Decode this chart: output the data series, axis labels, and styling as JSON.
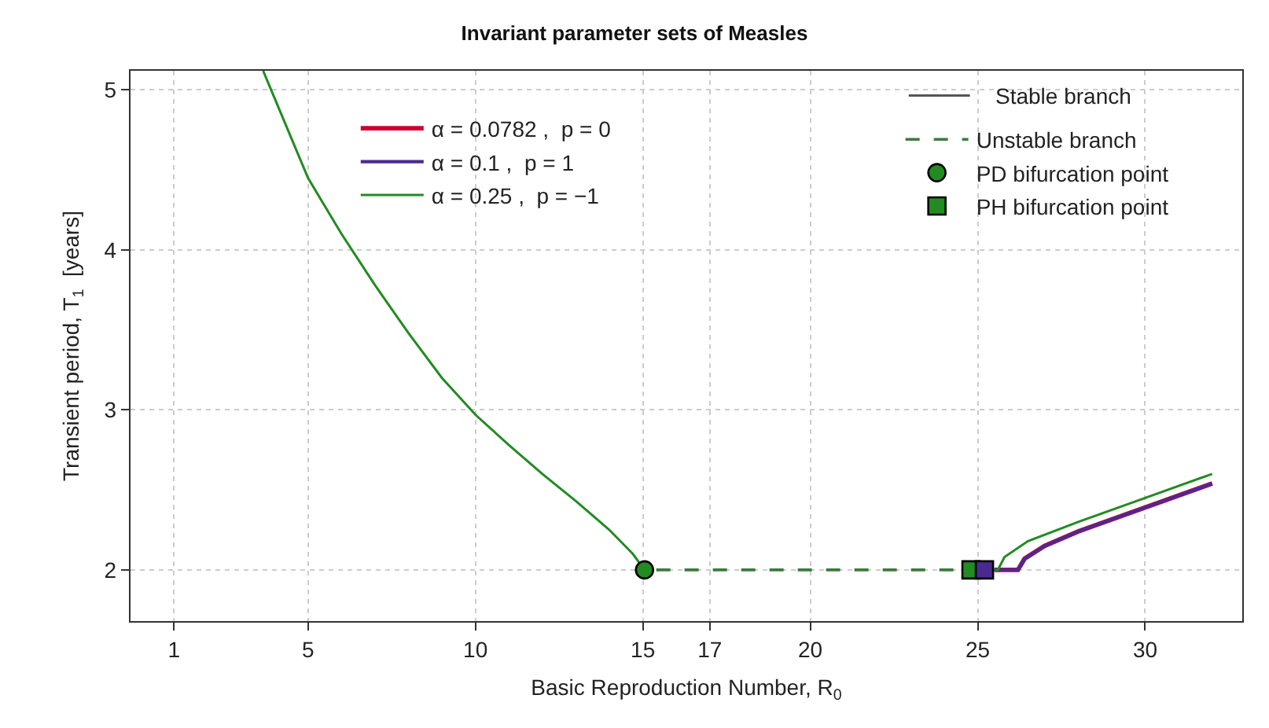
{
  "chart_data": {
    "type": "line",
    "title": "Invariant parameter sets of Measles",
    "xlabel": "Basic Reproduction Number, R$_{0}$",
    "ylabel": "Transient period, T$_{1}$  [years]",
    "xlim": [
      -0.3,
      32.9
    ],
    "xticks": [
      1,
      5,
      10,
      15,
      17,
      20,
      25,
      30
    ],
    "ylim": [
      1.68,
      5.12
    ],
    "yticks": [
      2,
      3,
      4,
      5
    ],
    "grid": true,
    "legend": "top",
    "annotations": [
      "Stable branch"
    ],
    "series": [
      {
        "name": "α = 0.0782 ,  p = 0",
        "color": "#cc0033",
        "line_style": "solid",
        "x": [
          25.5,
          26.2,
          26.4,
          27,
          28,
          30,
          32
        ],
        "values": [
          2.0,
          2.0,
          2.07,
          2.15,
          2.24,
          2.39,
          2.54
        ]
      },
      {
        "name": "α = 0.1 ,  p = 1",
        "color": "#4b2a90",
        "line_style": "solid",
        "x": [
          25.5,
          26.2,
          26.4,
          27,
          28,
          30,
          32
        ],
        "values": [
          2.0,
          2.0,
          2.07,
          2.15,
          2.24,
          2.39,
          2.54
        ]
      },
      {
        "name": "α = 0.25 ,  p = −1",
        "color": "#228b22",
        "line_style": "solid",
        "x": [
          3.66,
          4,
          5,
          6,
          7,
          8,
          9,
          10,
          11,
          12,
          13,
          14,
          14.7,
          15.05,
          null,
          24.8,
          25.6,
          25.8,
          26.5,
          28,
          30,
          32
        ],
        "values": [
          5.12,
          4.95,
          4.45,
          4.1,
          3.78,
          3.48,
          3.2,
          2.97,
          2.78,
          2.6,
          2.43,
          2.25,
          2.1,
          2.0,
          null,
          2.0,
          2.0,
          2.08,
          2.18,
          2.3,
          2.45,
          2.6
        ]
      },
      {
        "name": "Unstable branch",
        "color": "#3d7a3d",
        "line_style": "dashed",
        "x": [
          15.4,
          17,
          20,
          22,
          24.4
        ],
        "values": [
          2.0,
          2.0,
          2.0,
          2.0,
          2.0
        ]
      },
      {
        "type": "scatter",
        "name": "PD bifurcation point",
        "color": "#228b22",
        "marker": "circle",
        "x": [
          15.05
        ],
        "values": [
          2.0
        ]
      },
      {
        "type": "scatter",
        "name": "PH bifurcation point",
        "colors": [
          "#228b22",
          "#4b2a90"
        ],
        "marker": "square",
        "x": [
          24.8,
          25.2
        ],
        "values": [
          2.0,
          2.0
        ]
      }
    ]
  }
}
